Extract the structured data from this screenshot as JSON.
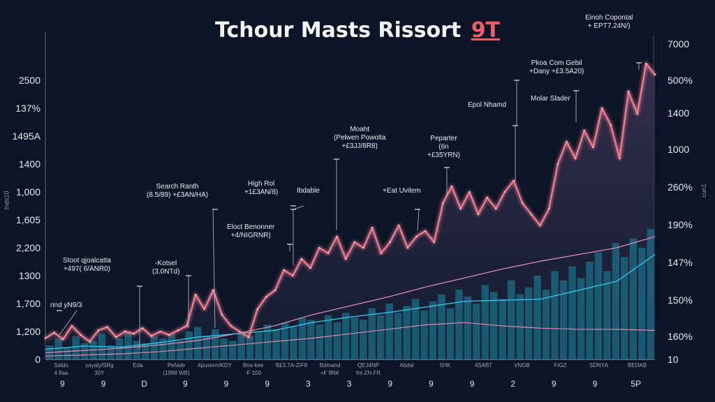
{
  "chart_data": {
    "type": "line",
    "title": "Tchour Masts Rissort",
    "title_badge": "9T",
    "ylabel_left": "Inds10",
    "ylabel_right": "cun1",
    "left_ticks": [
      "2500",
      "137%",
      "1495A",
      "1400",
      "1,000",
      "1,605",
      "2,200",
      "1300",
      "1,700",
      "1,200",
      "0"
    ],
    "right_ticks": [
      "7000",
      "500%",
      "1400",
      "1000",
      "260%",
      "190%",
      "147%",
      "150%",
      "160%",
      "10"
    ],
    "ylim": [
      0,
      2500
    ],
    "grid": false,
    "colors": {
      "background": "#0b1526",
      "price": "#f07d92",
      "trend": "#d98bb0",
      "signal": "#2fc7e6",
      "volume": "#1b8aa6"
    },
    "series": [
      {
        "key": "price",
        "values": [
          190,
          240,
          180,
          300,
          220,
          160,
          260,
          290,
          200,
          250,
          230,
          280,
          210,
          250,
          220,
          260,
          300,
          580,
          450,
          620,
          400,
          300,
          250,
          200,
          450,
          560,
          620,
          800,
          750,
          900,
          820,
          1000,
          950,
          1100,
          900,
          1050,
          1000,
          1180,
          950,
          1050,
          1200,
          1000,
          1100,
          1150,
          1050,
          1400,
          1550,
          1350,
          1500,
          1300,
          1450,
          1350,
          1500,
          1600,
          1400,
          1300,
          1200,
          1350,
          1750,
          1950,
          1800,
          2050,
          1900,
          2250,
          2100,
          1800,
          2400,
          2200,
          2650,
          2550
        ]
      },
      {
        "key": "upper_trend",
        "values": [
          60,
          80,
          100,
          130,
          170,
          230,
          300,
          400,
          480,
          560,
          650,
          730,
          810,
          880,
          940,
          1000,
          1100
        ]
      },
      {
        "key": "signal",
        "values": [
          90,
          120,
          110,
          150,
          200,
          230,
          260,
          330,
          380,
          420,
          470,
          520,
          530,
          540,
          620,
          700,
          940
        ]
      },
      {
        "key": "lower_trend",
        "values": [
          30,
          40,
          50,
          70,
          100,
          130,
          160,
          190,
          230,
          270,
          310,
          330,
          300,
          280,
          270,
          270,
          260
        ]
      }
    ],
    "volume": [
      30,
      45,
      25,
      50,
      35,
      40,
      55,
      30,
      45,
      60,
      40,
      35,
      50,
      45,
      55,
      40,
      60,
      70,
      50,
      65,
      45,
      40,
      55,
      50,
      60,
      75,
      65,
      80,
      70,
      90,
      85,
      75,
      95,
      80,
      100,
      90,
      85,
      110,
      95,
      120,
      100,
      115,
      130,
      105,
      125,
      140,
      110,
      150,
      135,
      120,
      160,
      145,
      130,
      170,
      140,
      155,
      180,
      150,
      190,
      170,
      200,
      175,
      210,
      230,
      190,
      250,
      220,
      260,
      240,
      280
    ],
    "annotations": [
      {
        "lines": [
          "Stoot qjoalcatta",
          "+497( 6/ANR0)"
        ]
      },
      {
        "lines": [
          "nnd yN9/3"
        ]
      },
      {
        "lines": [
          "Search Ranth",
          "(8.5/89)  +£3AN/HA)"
        ]
      },
      {
        "lines": [
          "-Kotsel",
          "(3.0NTd)"
        ]
      },
      {
        "lines": [
          "High Rol",
          "+1£3AN/8)"
        ]
      },
      {
        "lines": [
          "Ibdable"
        ]
      },
      {
        "lines": [
          "Eloct Benonner",
          "+4/NIGRNR)"
        ]
      },
      {
        "lines": [
          "Moaht",
          "(Pelwen Powolta",
          "+£3JJ/8R8)"
        ]
      },
      {
        "lines": [
          "+Eat Uvitem"
        ]
      },
      {
        "lines": [
          "Peparter",
          "(6n",
          "+£35YRN)"
        ]
      },
      {
        "lines": [
          "Epol Nhamd"
        ]
      },
      {
        "lines": [
          "Pkoa Com Gebil",
          "+Dany +£3.5A20)"
        ]
      },
      {
        "lines": [
          "Molar Slader"
        ]
      },
      {
        "lines": [
          "Einoh Copontal",
          "+ EPT7.24N/)"
        ]
      }
    ],
    "x_labels_top": [
      "Saldo",
      "yayaly/SRg",
      "Eda",
      "Pefade",
      "4pussnn/KDY",
      "Bna kee",
      "B£3.7A-Z/F8",
      "Bdmand",
      "QEJ4NP",
      "Abdal",
      "5HK",
      "4SABT",
      "VNGB",
      "FIGZ",
      "SDNYA",
      "BEDAB"
    ],
    "x_labels_mid": [
      "4 8aa",
      "30Y",
      "",
      "(1988 WB)",
      "",
      "-F 100",
      "",
      "=F 9NK",
      "fnt-ZN FR",
      "",
      "",
      "",
      "",
      "",
      "",
      ""
    ],
    "x_labels_big": [
      "9",
      "9",
      "D",
      "9",
      "9",
      "9",
      "3",
      "3",
      "9",
      "9",
      "9",
      "2",
      "9",
      "9",
      "5P"
    ]
  }
}
